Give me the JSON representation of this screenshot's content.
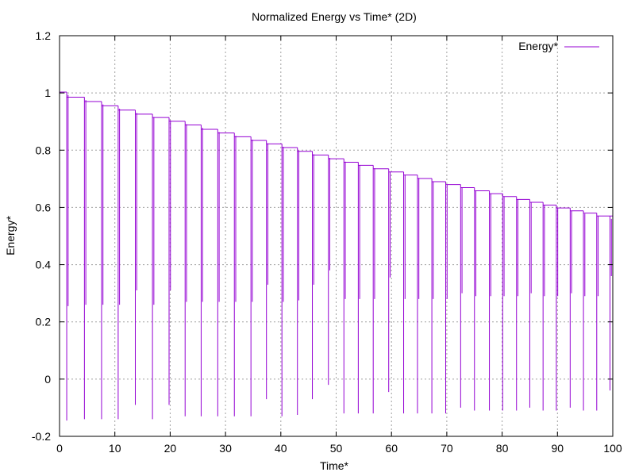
{
  "chart_data": {
    "type": "line",
    "title": "Normalized Energy vs Time* (2D)",
    "xlabel": "Time*",
    "ylabel": "Energy*",
    "xlim": [
      0,
      100
    ],
    "ylim": [
      -0.2,
      1.2
    ],
    "x_ticks": [
      0,
      10,
      20,
      30,
      40,
      50,
      60,
      70,
      80,
      90,
      100
    ],
    "y_ticks": [
      -0.2,
      0,
      0.2,
      0.4,
      0.6,
      0.8,
      1,
      1.2
    ],
    "x_tick_labels": [
      "0",
      "10",
      "20",
      "30",
      "40",
      "50",
      "60",
      "70",
      "80",
      "90",
      "100"
    ],
    "y_tick_labels": [
      "-0.2",
      "0",
      "0.2",
      "0.4",
      "0.6",
      "0.8",
      "1",
      "1.2"
    ],
    "grid": true,
    "legend": {
      "position": "top-right",
      "entries": [
        "Energy*"
      ]
    },
    "series": [
      {
        "name": "Energy*",
        "color": "#9400d3",
        "plateaus": [
          {
            "t_start": 0.0,
            "t_end": 1.3,
            "value": 1.003
          },
          {
            "t_start": 1.3,
            "t_end": 4.5,
            "value": 0.985
          },
          {
            "t_start": 4.5,
            "t_end": 7.6,
            "value": 0.97
          },
          {
            "t_start": 7.6,
            "t_end": 10.6,
            "value": 0.955
          },
          {
            "t_start": 10.6,
            "t_end": 13.7,
            "value": 0.94
          },
          {
            "t_start": 13.7,
            "t_end": 16.8,
            "value": 0.926
          },
          {
            "t_start": 16.8,
            "t_end": 19.8,
            "value": 0.914
          },
          {
            "t_start": 19.8,
            "t_end": 22.7,
            "value": 0.901
          },
          {
            "t_start": 22.7,
            "t_end": 25.6,
            "value": 0.888
          },
          {
            "t_start": 25.6,
            "t_end": 28.6,
            "value": 0.873
          },
          {
            "t_start": 28.6,
            "t_end": 31.6,
            "value": 0.86
          },
          {
            "t_start": 31.6,
            "t_end": 34.6,
            "value": 0.847
          },
          {
            "t_start": 34.6,
            "t_end": 37.4,
            "value": 0.834
          },
          {
            "t_start": 37.4,
            "t_end": 40.2,
            "value": 0.822
          },
          {
            "t_start": 40.2,
            "t_end": 43.0,
            "value": 0.809
          },
          {
            "t_start": 43.0,
            "t_end": 45.7,
            "value": 0.796
          },
          {
            "t_start": 45.7,
            "t_end": 48.6,
            "value": 0.783
          },
          {
            "t_start": 48.6,
            "t_end": 51.4,
            "value": 0.77
          },
          {
            "t_start": 51.4,
            "t_end": 54.0,
            "value": 0.758
          },
          {
            "t_start": 54.0,
            "t_end": 56.7,
            "value": 0.747
          },
          {
            "t_start": 56.7,
            "t_end": 59.5,
            "value": 0.735
          },
          {
            "t_start": 59.5,
            "t_end": 62.2,
            "value": 0.724
          },
          {
            "t_start": 62.2,
            "t_end": 64.7,
            "value": 0.713
          },
          {
            "t_start": 64.7,
            "t_end": 67.3,
            "value": 0.701
          },
          {
            "t_start": 67.3,
            "t_end": 69.8,
            "value": 0.69
          },
          {
            "t_start": 69.8,
            "t_end": 72.5,
            "value": 0.68
          },
          {
            "t_start": 72.5,
            "t_end": 75.0,
            "value": 0.669
          },
          {
            "t_start": 75.0,
            "t_end": 77.7,
            "value": 0.658
          },
          {
            "t_start": 77.7,
            "t_end": 80.1,
            "value": 0.648
          },
          {
            "t_start": 80.1,
            "t_end": 82.6,
            "value": 0.638
          },
          {
            "t_start": 82.6,
            "t_end": 85.0,
            "value": 0.628
          },
          {
            "t_start": 85.0,
            "t_end": 87.4,
            "value": 0.618
          },
          {
            "t_start": 87.4,
            "t_end": 89.8,
            "value": 0.608
          },
          {
            "t_start": 89.8,
            "t_end": 92.3,
            "value": 0.598
          },
          {
            "t_start": 92.3,
            "t_end": 94.7,
            "value": 0.588
          },
          {
            "t_start": 94.7,
            "t_end": 97.1,
            "value": 0.58
          },
          {
            "t_start": 97.1,
            "t_end": 100.0,
            "value": 0.57
          }
        ],
        "dips": [
          {
            "t": 1.3,
            "min": -0.145
          },
          {
            "t": 4.5,
            "min": -0.14
          },
          {
            "t": 7.6,
            "min": -0.14
          },
          {
            "t": 10.6,
            "min": -0.14
          },
          {
            "t": 13.7,
            "min": -0.09
          },
          {
            "t": 16.8,
            "min": -0.14
          },
          {
            "t": 19.8,
            "min": -0.09
          },
          {
            "t": 22.7,
            "min": -0.13
          },
          {
            "t": 25.6,
            "min": -0.13
          },
          {
            "t": 28.6,
            "min": -0.13
          },
          {
            "t": 31.6,
            "min": -0.13
          },
          {
            "t": 34.6,
            "min": -0.13
          },
          {
            "t": 37.4,
            "min": -0.07
          },
          {
            "t": 40.2,
            "min": -0.13
          },
          {
            "t": 43.0,
            "min": -0.125
          },
          {
            "t": 45.7,
            "min": -0.07
          },
          {
            "t": 48.6,
            "min": -0.02
          },
          {
            "t": 51.4,
            "min": -0.12
          },
          {
            "t": 54.0,
            "min": -0.12
          },
          {
            "t": 56.7,
            "min": -0.12
          },
          {
            "t": 59.5,
            "min": -0.045
          },
          {
            "t": 62.2,
            "min": -0.12
          },
          {
            "t": 64.7,
            "min": -0.12
          },
          {
            "t": 67.3,
            "min": -0.12
          },
          {
            "t": 69.8,
            "min": -0.12
          },
          {
            "t": 72.5,
            "min": -0.1
          },
          {
            "t": 75.0,
            "min": -0.11
          },
          {
            "t": 77.7,
            "min": -0.11
          },
          {
            "t": 80.1,
            "min": -0.11
          },
          {
            "t": 82.6,
            "min": -0.11
          },
          {
            "t": 85.0,
            "min": -0.1
          },
          {
            "t": 87.4,
            "min": -0.11
          },
          {
            "t": 89.8,
            "min": -0.11
          },
          {
            "t": 92.3,
            "min": -0.1
          },
          {
            "t": 94.7,
            "min": -0.11
          },
          {
            "t": 97.1,
            "min": -0.11
          },
          {
            "t": 99.5,
            "min": -0.04
          }
        ]
      }
    ]
  }
}
